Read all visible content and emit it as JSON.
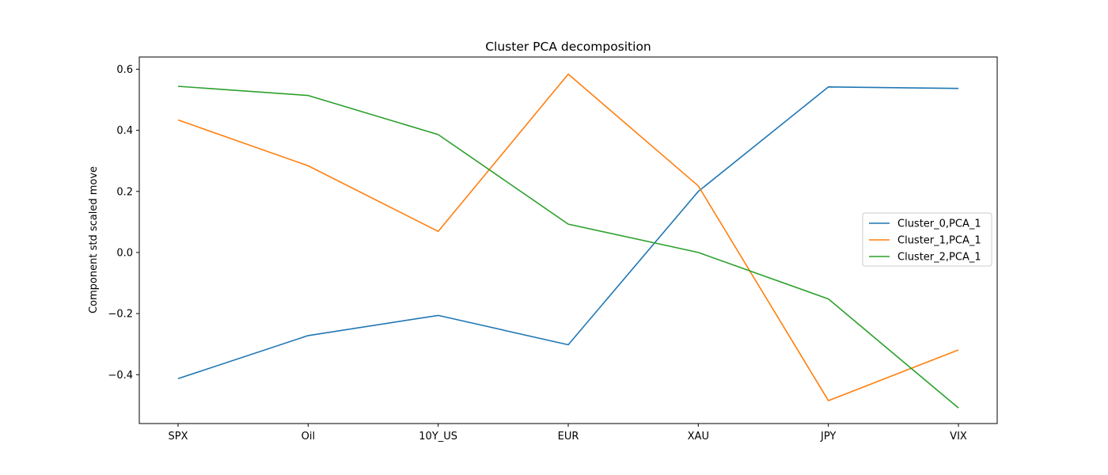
{
  "chart_data": {
    "type": "line",
    "title": "Cluster PCA decomposition",
    "xlabel": "",
    "ylabel": "Component std scaled move",
    "categories": [
      "SPX",
      "Oil",
      "10Y_US",
      "EUR",
      "XAU",
      "JPY",
      "VIX"
    ],
    "ylim": [
      -0.56,
      0.64
    ],
    "yticks": [
      -0.4,
      -0.2,
      0.0,
      0.2,
      0.4,
      0.6
    ],
    "ytick_labels": [
      "−0.4",
      "−0.2",
      "0.0",
      "0.2",
      "0.4",
      "0.6"
    ],
    "grid": false,
    "legend_position": "center-right",
    "series": [
      {
        "name": "Cluster_0,PCA_1",
        "color": "#1f77b4",
        "values": [
          -0.413,
          -0.272,
          -0.206,
          -0.302,
          0.2,
          0.542,
          0.537
        ]
      },
      {
        "name": "Cluster_1,PCA_1",
        "color": "#ff7f0e",
        "values": [
          0.434,
          0.284,
          0.069,
          0.584,
          0.218,
          -0.485,
          -0.319
        ]
      },
      {
        "name": "Cluster_2,PCA_1",
        "color": "#2ca02c",
        "values": [
          0.544,
          0.514,
          0.386,
          0.093,
          0.0,
          -0.152,
          -0.509
        ]
      }
    ]
  }
}
